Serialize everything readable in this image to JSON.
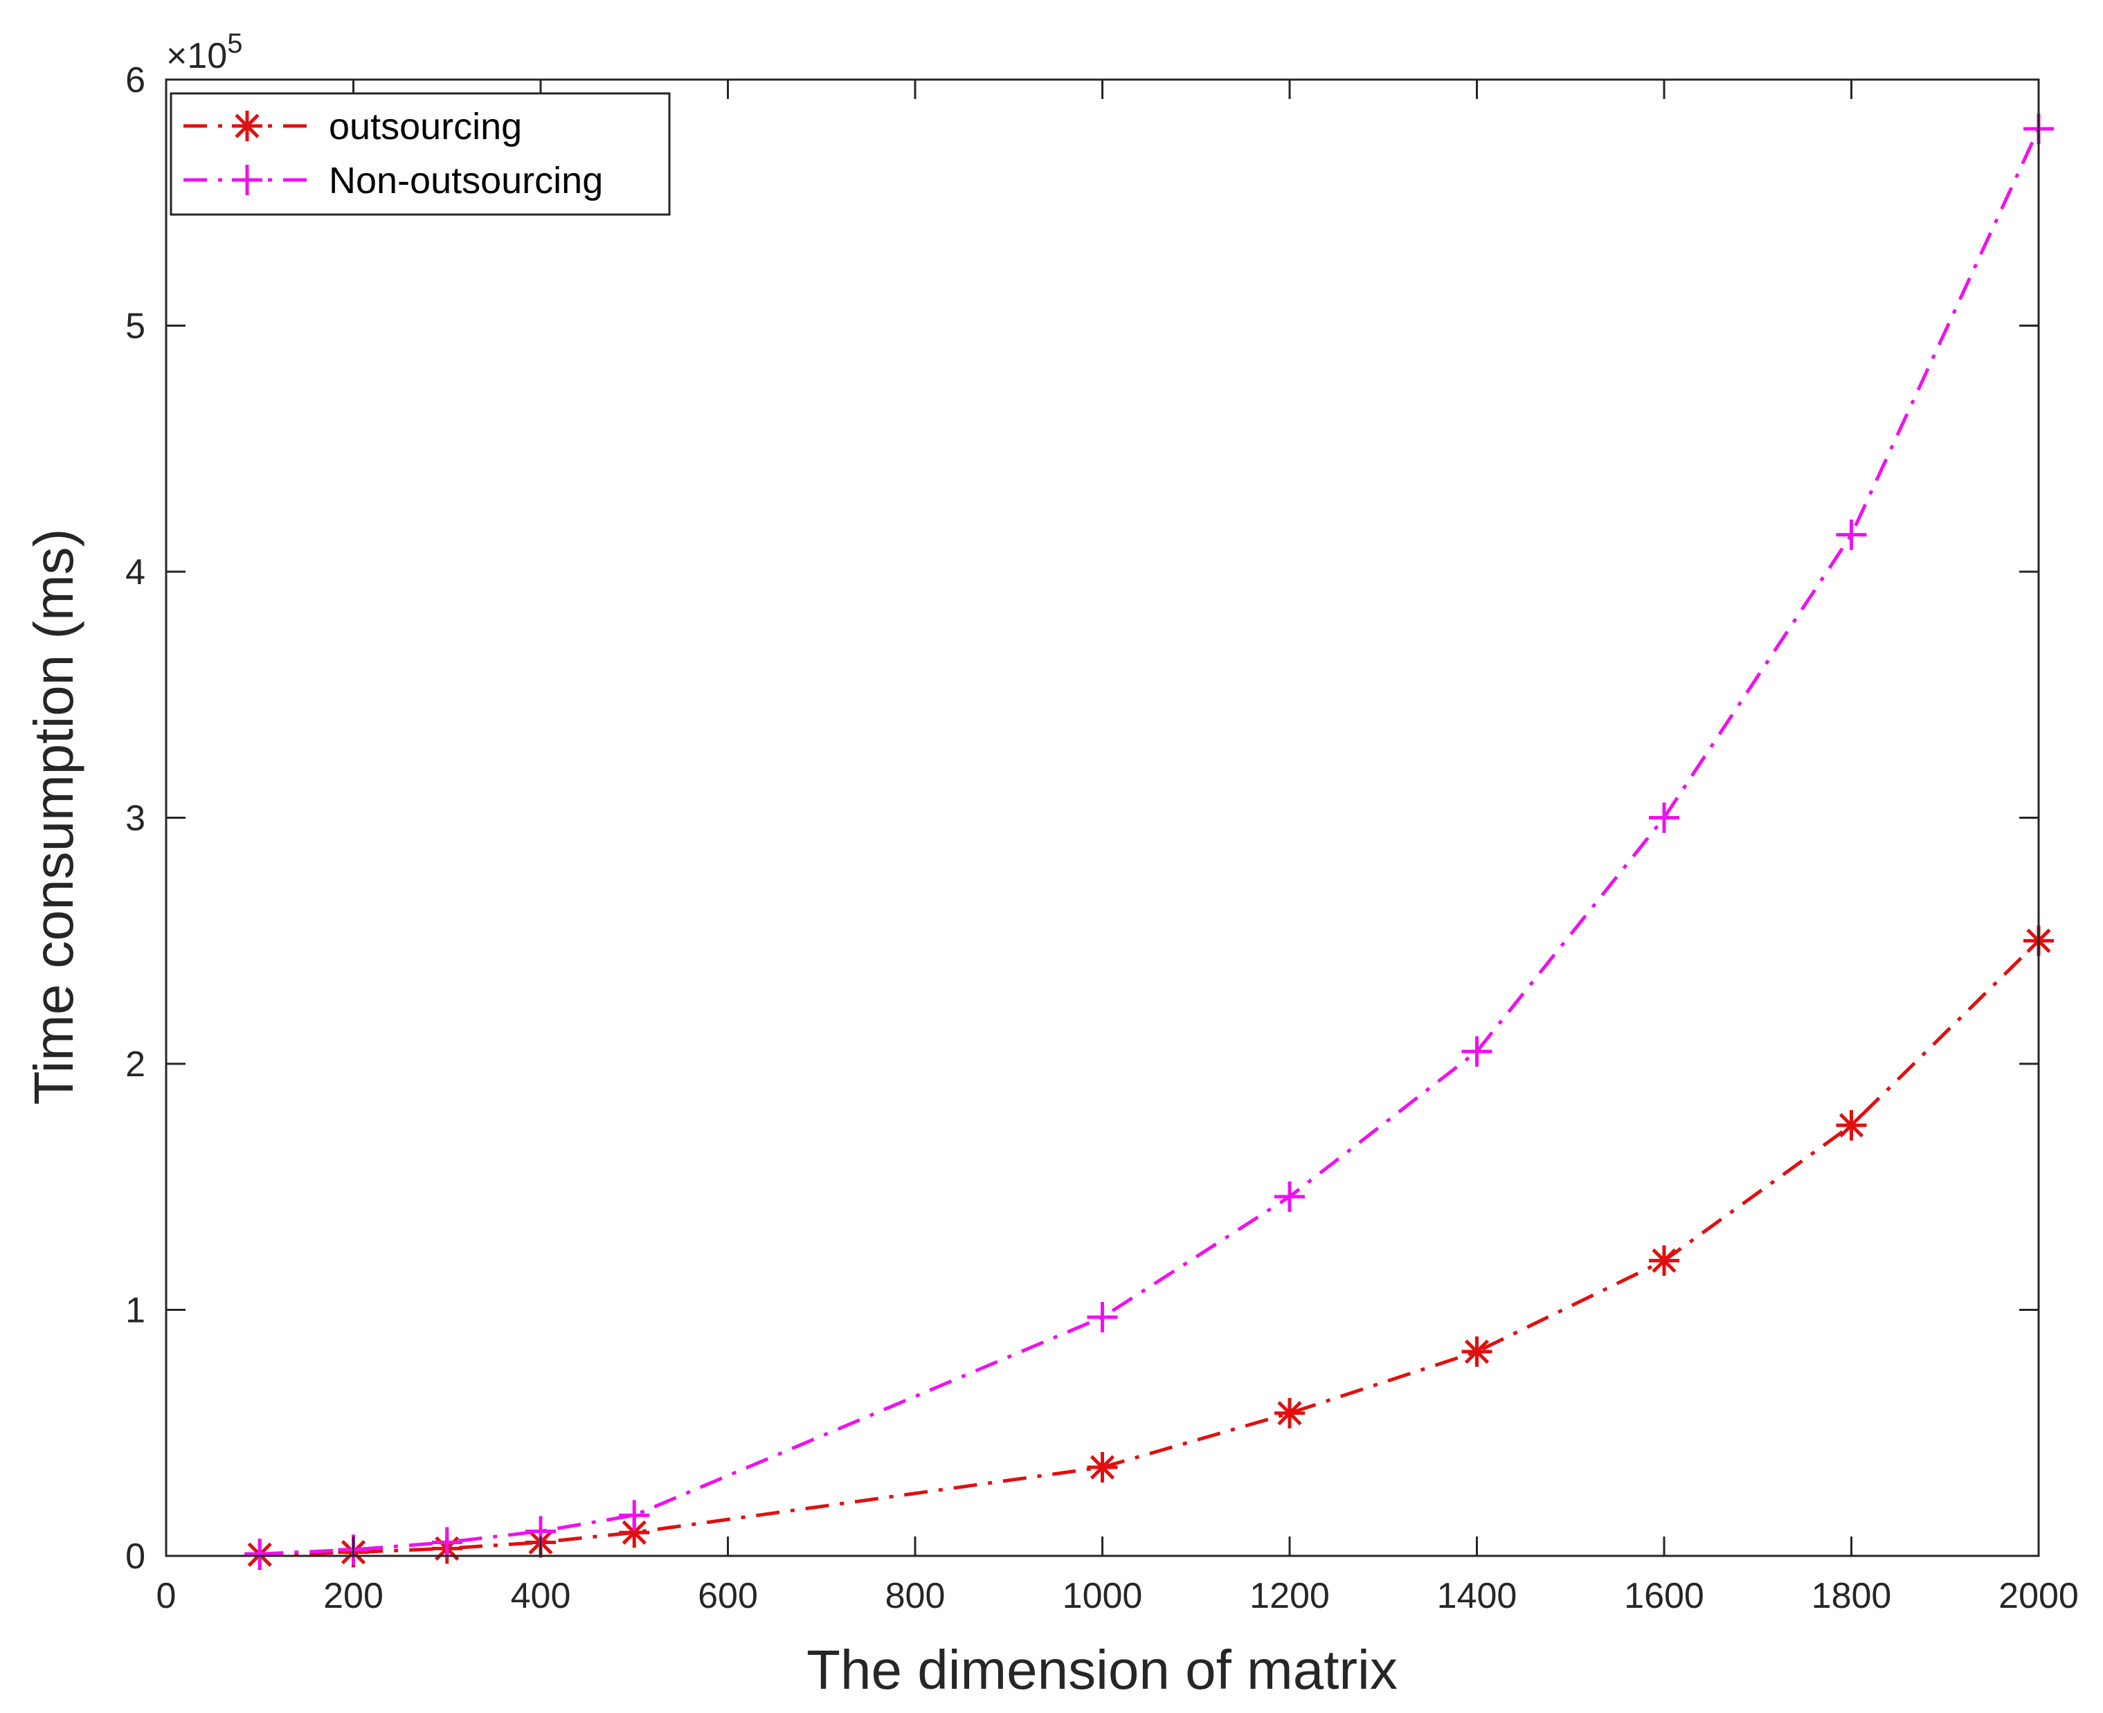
{
  "chart_data": {
    "type": "line",
    "title": "",
    "xlabel": "The dimension of matrix",
    "ylabel": "Time consumption (ms)",
    "xlim": [
      0,
      2000
    ],
    "ylim": [
      0,
      600000
    ],
    "xticks": [
      0,
      200,
      400,
      600,
      800,
      1000,
      1200,
      1400,
      1600,
      1800,
      2000
    ],
    "yticks": [
      0,
      100000,
      200000,
      300000,
      400000,
      500000,
      600000
    ],
    "ytick_labels": [
      "0",
      "1",
      "2",
      "3",
      "4",
      "5",
      "6"
    ],
    "y_exponent_label": "×10",
    "y_exponent_power": "5",
    "grid": false,
    "legend_position": "top-left",
    "x": [
      100,
      200,
      300,
      400,
      500,
      1000,
      1200,
      1400,
      1600,
      1800,
      2000
    ],
    "series": [
      {
        "name": "outsourcing",
        "color": "#e01010",
        "marker": "asterisk",
        "line_style": "dash-dot",
        "values": [
          500,
          1500,
          3000,
          5500,
          9500,
          36000,
          58000,
          83000,
          120000,
          175000,
          250000
        ]
      },
      {
        "name": "Non-outsourcing",
        "color": "#ee11ee",
        "marker": "plus",
        "line_style": "dash-dot",
        "values": [
          800,
          2500,
          5500,
          10000,
          16500,
          97000,
          146000,
          205000,
          300000,
          415000,
          580000
        ]
      }
    ]
  }
}
